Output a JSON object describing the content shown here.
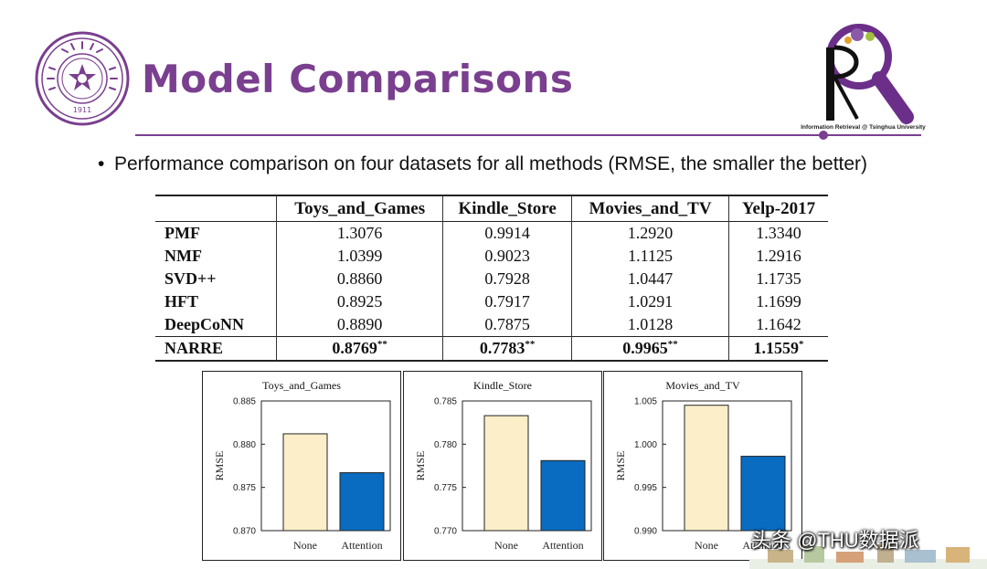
{
  "header": {
    "title": "Model Comparisons",
    "seal_text": "1911",
    "ir_caption": "Information Retrieval @ Tsinghua University"
  },
  "bullet": "Performance comparison on four datasets for all methods (RMSE, the smaller the better)",
  "table": {
    "columns": [
      "",
      "Toys_and_Games",
      "Kindle_Store",
      "Movies_and_TV",
      "Yelp-2017"
    ],
    "rows": [
      {
        "method": "PMF",
        "values": [
          "1.3076",
          "0.9914",
          "1.2920",
          "1.3340"
        ]
      },
      {
        "method": "NMF",
        "values": [
          "1.0399",
          "0.9023",
          "1.1125",
          "1.2916"
        ]
      },
      {
        "method": "SVD++",
        "values": [
          "0.8860",
          "0.7928",
          "1.0447",
          "1.1735"
        ]
      },
      {
        "method": "HFT",
        "values": [
          "0.8925",
          "0.7917",
          "1.0291",
          "1.1699"
        ]
      },
      {
        "method": "DeepCoNN",
        "values": [
          "0.8890",
          "0.7875",
          "1.0128",
          "1.1642"
        ]
      }
    ],
    "best_row": {
      "method": "NARRE",
      "values": [
        "0.8769",
        "0.7783",
        "0.9965",
        "1.1559"
      ],
      "marks": [
        "**",
        "**",
        "**",
        "*"
      ]
    }
  },
  "chart_data": [
    {
      "type": "bar",
      "title": "Toys_and_Games",
      "categories": [
        "None",
        "Attention"
      ],
      "values": [
        0.8812,
        0.8767
      ],
      "ylabel": "RMSE",
      "ylim": [
        0.87,
        0.885
      ],
      "yticks": [
        "0.870",
        "0.875",
        "0.880",
        "0.885"
      ],
      "colors": [
        "#fbeec8",
        "#0a6cc0"
      ]
    },
    {
      "type": "bar",
      "title": "Kindle_Store",
      "categories": [
        "None",
        "Attention"
      ],
      "values": [
        0.7833,
        0.7781
      ],
      "ylabel": "RMSE",
      "ylim": [
        0.77,
        0.785
      ],
      "yticks": [
        "0.770",
        "0.775",
        "0.780",
        "0.785"
      ],
      "colors": [
        "#fbeec8",
        "#0a6cc0"
      ]
    },
    {
      "type": "bar",
      "title": "Movies_and_TV",
      "categories": [
        "None",
        "Attention"
      ],
      "values": [
        1.0045,
        0.9986
      ],
      "ylabel": "RMSE",
      "ylim": [
        0.99,
        1.005
      ],
      "yticks": [
        "0.990",
        "0.995",
        "1.000",
        "1.005"
      ],
      "colors": [
        "#fbeec8",
        "#0a6cc0"
      ]
    }
  ],
  "watermark": "头条 @THU数据派",
  "colors": {
    "accent": "#7a3f8f",
    "bar_none": "#fbeec8",
    "bar_attention": "#0a6cc0"
  }
}
